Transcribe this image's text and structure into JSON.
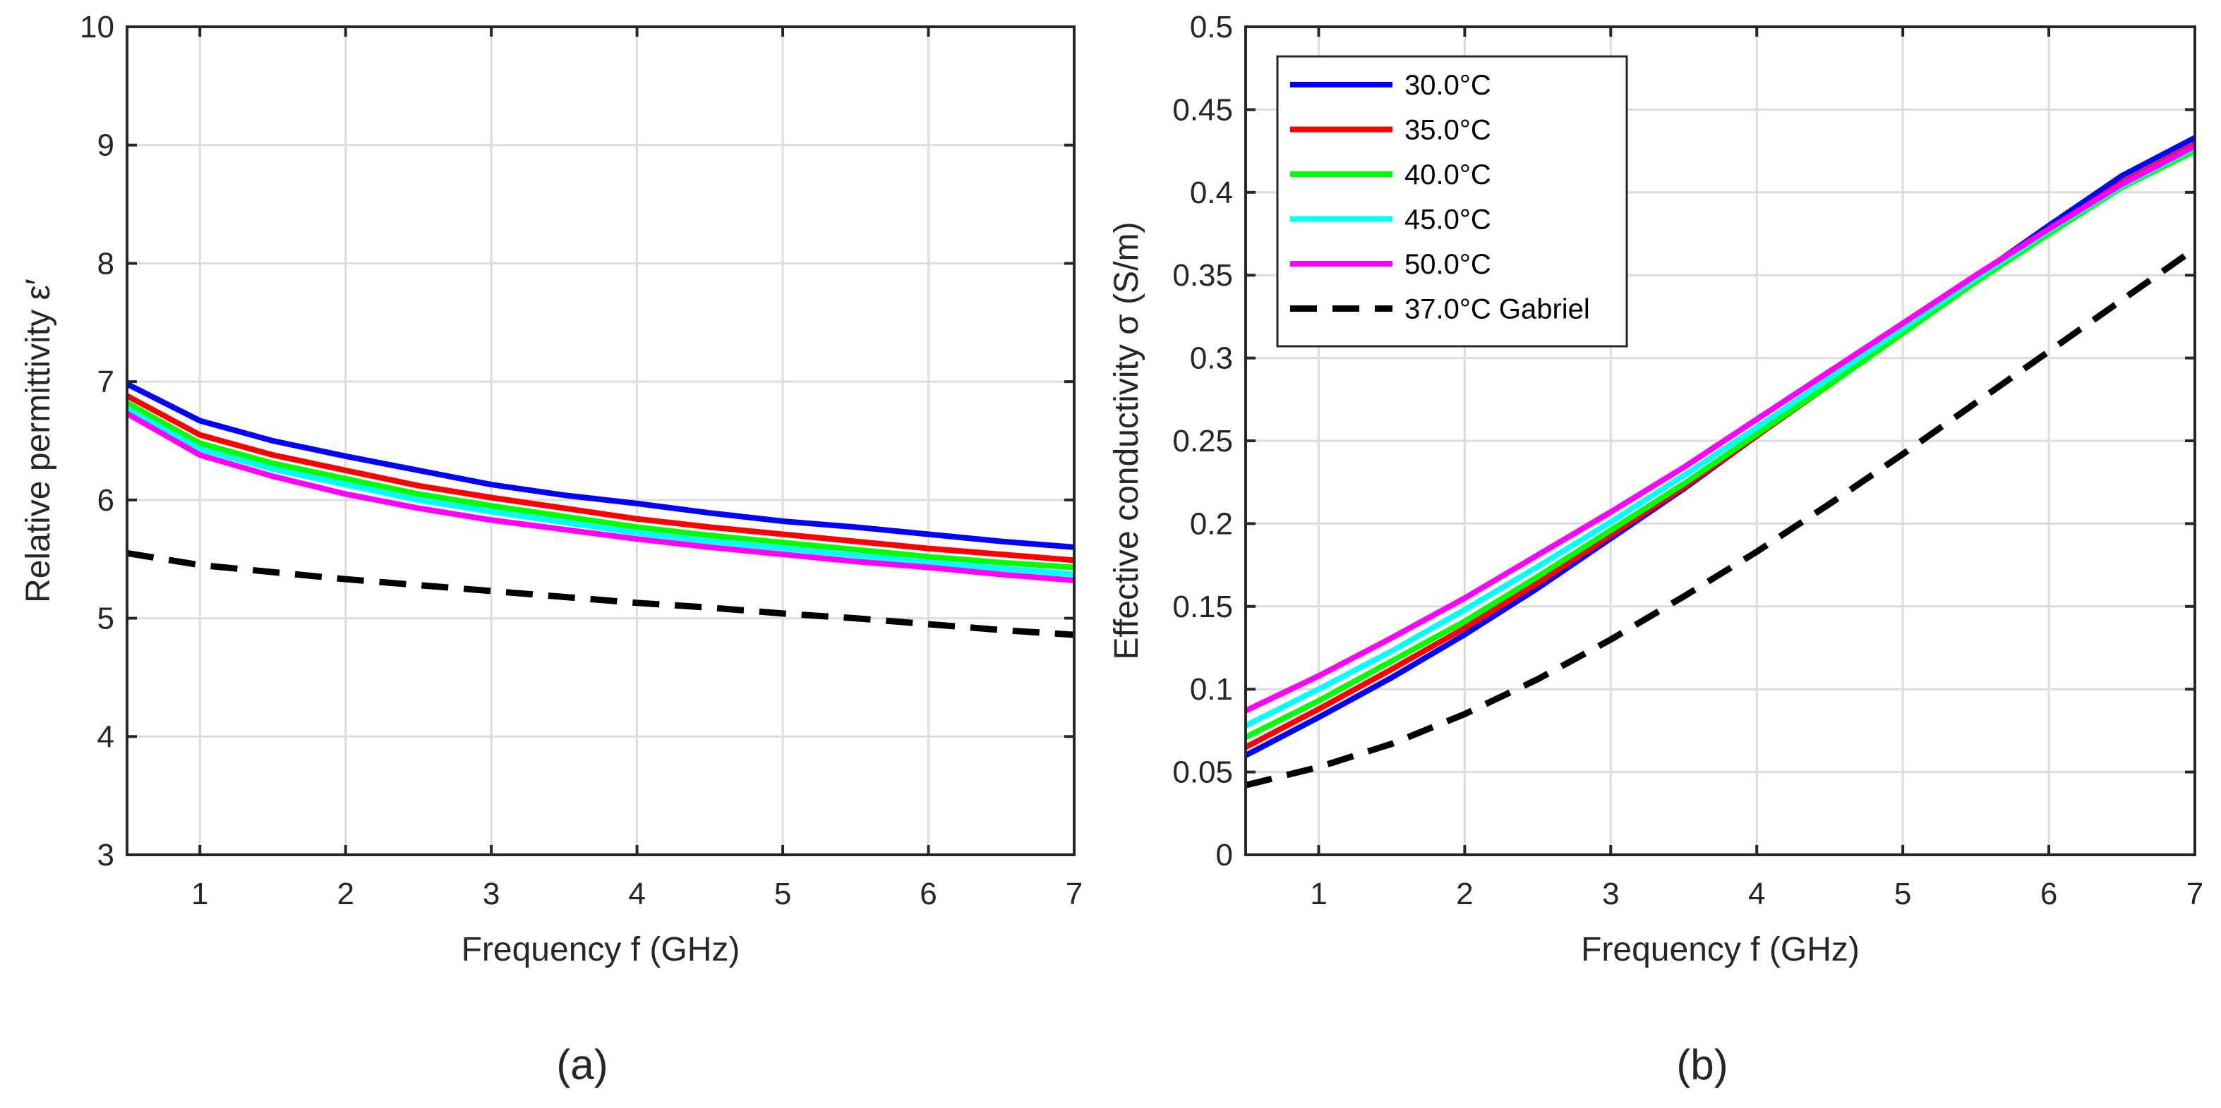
{
  "colors": {
    "t30": "#0000ff",
    "t35": "#ff0000",
    "t40": "#00ff00",
    "t45": "#00ffff",
    "t50": "#ff00ff",
    "gabriel": "#000000"
  },
  "chart_data": [
    {
      "type": "line",
      "panel_label": "(a)",
      "title": "",
      "xlabel": "Frequency f (GHz)",
      "ylabel": "Relative permittivity ε′",
      "xlim": [
        0.5,
        7
      ],
      "ylim": [
        3,
        10
      ],
      "xticks": [
        1,
        2,
        3,
        4,
        5,
        6,
        7
      ],
      "xtick_labels": [
        "1",
        "2",
        "3",
        "4",
        "5",
        "6",
        "7"
      ],
      "yticks": [
        3,
        4,
        5,
        6,
        7,
        8,
        9,
        10
      ],
      "ytick_labels": [
        "3",
        "4",
        "5",
        "6",
        "7",
        "8",
        "9",
        "10"
      ],
      "grid": true,
      "x": [
        0.5,
        1,
        1.5,
        2,
        2.5,
        3,
        3.5,
        4,
        4.5,
        5,
        5.5,
        6,
        6.5,
        7
      ],
      "series": [
        {
          "name": "30.0°C",
          "color_key": "t30",
          "style": "solid",
          "values": [
            6.98,
            6.67,
            6.5,
            6.37,
            6.25,
            6.13,
            6.04,
            5.97,
            5.89,
            5.82,
            5.77,
            5.71,
            5.65,
            5.6
          ]
        },
        {
          "name": "35.0°C",
          "color_key": "t35",
          "style": "solid",
          "values": [
            6.88,
            6.55,
            6.38,
            6.25,
            6.12,
            6.02,
            5.93,
            5.84,
            5.77,
            5.71,
            5.65,
            5.59,
            5.54,
            5.49
          ]
        },
        {
          "name": "40.0°C",
          "color_key": "t40",
          "style": "solid",
          "values": [
            6.82,
            6.48,
            6.31,
            6.18,
            6.05,
            5.95,
            5.86,
            5.77,
            5.7,
            5.64,
            5.58,
            5.52,
            5.47,
            5.43
          ]
        },
        {
          "name": "45.0°C",
          "color_key": "t45",
          "style": "solid",
          "values": [
            6.77,
            6.43,
            6.26,
            6.13,
            6.0,
            5.9,
            5.81,
            5.72,
            5.65,
            5.59,
            5.53,
            5.47,
            5.42,
            5.37
          ]
        },
        {
          "name": "50.0°C",
          "color_key": "t50",
          "style": "solid",
          "values": [
            6.73,
            6.38,
            6.2,
            6.05,
            5.93,
            5.83,
            5.75,
            5.67,
            5.6,
            5.54,
            5.48,
            5.43,
            5.37,
            5.32
          ]
        },
        {
          "name": "37.0°C Gabriel",
          "color_key": "gabriel",
          "style": "dashed",
          "values": [
            5.55,
            5.45,
            5.39,
            5.33,
            5.28,
            5.23,
            5.18,
            5.13,
            5.09,
            5.04,
            5.0,
            4.95,
            4.9,
            4.86
          ]
        }
      ]
    },
    {
      "type": "line",
      "panel_label": "(b)",
      "title": "",
      "xlabel": "Frequency f (GHz)",
      "ylabel": "Effective conductivity σ (S/m)",
      "xlim": [
        0.5,
        7
      ],
      "ylim": [
        0,
        0.5
      ],
      "xticks": [
        1,
        2,
        3,
        4,
        5,
        6,
        7
      ],
      "xtick_labels": [
        "1",
        "2",
        "3",
        "4",
        "5",
        "6",
        "7"
      ],
      "yticks": [
        0,
        0.05,
        0.1,
        0.15,
        0.2,
        0.25,
        0.3,
        0.35,
        0.4,
        0.45,
        0.5
      ],
      "ytick_labels": [
        "0",
        "0.05",
        "0.1",
        "0.15",
        "0.2",
        "0.25",
        "0.3",
        "0.35",
        "0.4",
        "0.45",
        "0.5"
      ],
      "grid": true,
      "legend": {
        "placement": "top-left",
        "entries": [
          "30.0°C",
          "35.0°C",
          "40.0°C",
          "45.0°C",
          "50.0°C",
          "37.0°C Gabriel"
        ]
      },
      "x": [
        0.5,
        1,
        1.5,
        2,
        2.5,
        3,
        3.5,
        4,
        4.5,
        5,
        5.5,
        6,
        6.5,
        7
      ],
      "series": [
        {
          "name": "30.0°C",
          "color_key": "t30",
          "style": "solid",
          "values": [
            0.06,
            0.083,
            0.107,
            0.133,
            0.161,
            0.191,
            0.221,
            0.253,
            0.285,
            0.317,
            0.349,
            0.38,
            0.41,
            0.433
          ]
        },
        {
          "name": "35.0°C",
          "color_key": "t35",
          "style": "solid",
          "values": [
            0.065,
            0.088,
            0.112,
            0.137,
            0.164,
            0.193,
            0.222,
            0.253,
            0.284,
            0.315,
            0.347,
            0.377,
            0.406,
            0.429
          ]
        },
        {
          "name": "40.0°C",
          "color_key": "t40",
          "style": "solid",
          "values": [
            0.071,
            0.093,
            0.117,
            0.141,
            0.168,
            0.196,
            0.224,
            0.254,
            0.284,
            0.315,
            0.346,
            0.375,
            0.403,
            0.425
          ]
        },
        {
          "name": "45.0°C",
          "color_key": "t45",
          "style": "solid",
          "values": [
            0.078,
            0.1,
            0.123,
            0.148,
            0.174,
            0.201,
            0.229,
            0.258,
            0.288,
            0.318,
            0.348,
            0.377,
            0.404,
            0.427
          ]
        },
        {
          "name": "50.0°C",
          "color_key": "t50",
          "style": "solid",
          "values": [
            0.087,
            0.108,
            0.131,
            0.155,
            0.181,
            0.207,
            0.234,
            0.263,
            0.292,
            0.321,
            0.35,
            0.378,
            0.405,
            0.428
          ]
        },
        {
          "name": "37.0°C Gabriel",
          "color_key": "gabriel",
          "style": "dashed",
          "values": [
            0.042,
            0.053,
            0.067,
            0.085,
            0.106,
            0.13,
            0.156,
            0.183,
            0.212,
            0.242,
            0.273,
            0.304,
            0.335,
            0.366
          ]
        }
      ]
    }
  ]
}
